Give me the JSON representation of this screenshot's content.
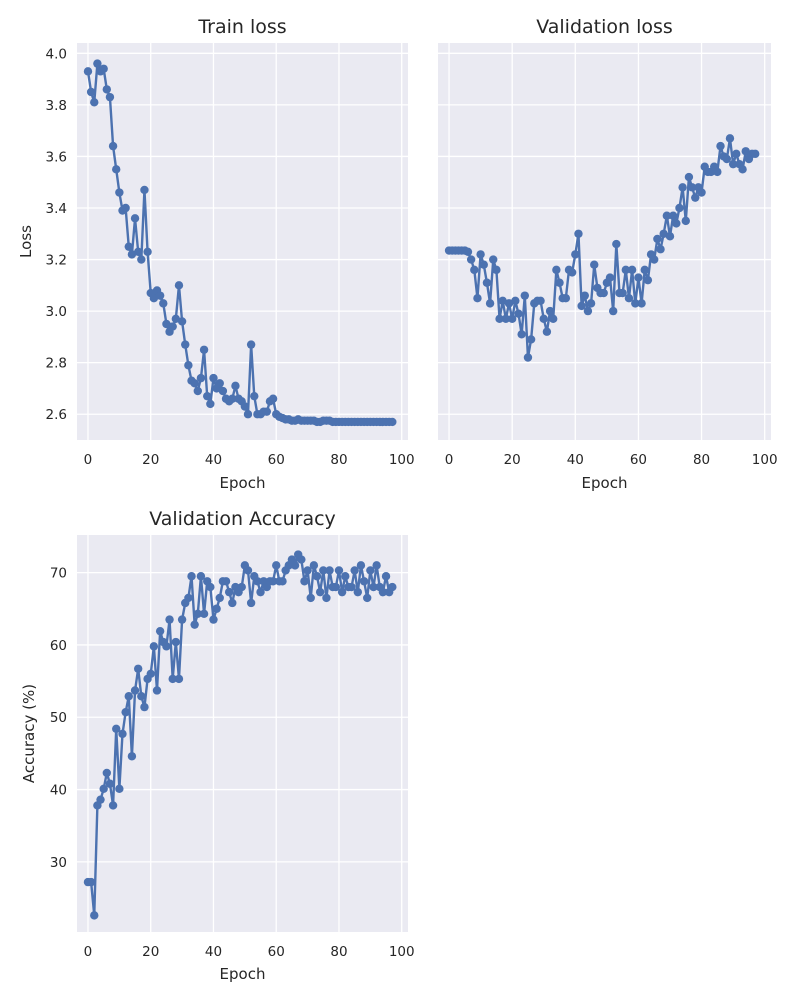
{
  "chart_data": [
    {
      "id": "train",
      "type": "line",
      "title": "Train loss",
      "xlabel": "Epoch",
      "ylabel": "Loss",
      "xlim": [
        -3.5,
        102
      ],
      "ylim": [
        2.5,
        4.04
      ],
      "xticks": [
        0,
        20,
        40,
        60,
        80,
        100
      ],
      "yticks": [
        2.6,
        2.8,
        3.0,
        3.2,
        3.4,
        3.6,
        3.8,
        4.0
      ],
      "ytick_labels": [
        "2.6",
        "2.8",
        "3.0",
        "3.2",
        "3.4",
        "3.6",
        "3.8",
        "4.0"
      ],
      "show_yticklabels": true,
      "grid": true,
      "color": "#4c72b0",
      "series": [
        {
          "x": [
            0,
            1,
            2,
            3,
            4,
            5,
            6,
            7,
            8,
            9,
            10,
            11,
            12,
            13,
            14,
            15,
            16,
            17,
            18,
            19,
            20,
            21,
            22,
            23,
            24,
            25,
            26,
            27,
            28,
            29,
            30,
            31,
            32,
            33,
            34,
            35,
            36,
            37,
            38,
            39,
            40,
            41,
            42,
            43,
            44,
            45,
            46,
            47,
            48,
            49,
            50,
            51,
            52,
            53,
            54,
            55,
            56,
            57,
            58,
            59,
            60,
            61,
            62,
            63,
            64,
            65,
            66,
            67,
            68,
            69,
            70,
            71,
            72,
            73,
            74,
            75,
            76,
            77,
            78,
            79,
            80,
            81,
            82,
            83,
            84,
            85,
            86,
            87,
            88,
            89,
            90,
            91,
            92,
            93,
            94,
            95,
            96,
            97
          ],
          "values": [
            3.93,
            3.85,
            3.81,
            3.96,
            3.93,
            3.94,
            3.86,
            3.83,
            3.64,
            3.55,
            3.46,
            3.39,
            3.4,
            3.25,
            3.22,
            3.36,
            3.23,
            3.2,
            3.47,
            3.23,
            3.07,
            3.05,
            3.08,
            3.06,
            3.03,
            2.95,
            2.92,
            2.94,
            2.97,
            3.1,
            2.96,
            2.87,
            2.79,
            2.73,
            2.72,
            2.69,
            2.74,
            2.85,
            2.67,
            2.64,
            2.74,
            2.7,
            2.72,
            2.69,
            2.66,
            2.65,
            2.66,
            2.71,
            2.66,
            2.65,
            2.63,
            2.6,
            2.87,
            2.67,
            2.6,
            2.6,
            2.61,
            2.61,
            2.65,
            2.66,
            2.6,
            2.59,
            2.585,
            2.58,
            2.58,
            2.575,
            2.575,
            2.58,
            2.575,
            2.575,
            2.575,
            2.575,
            2.575,
            2.57,
            2.57,
            2.575,
            2.575,
            2.575,
            2.57,
            2.57,
            2.57,
            2.57,
            2.57,
            2.57,
            2.57,
            2.57,
            2.57,
            2.57,
            2.57,
            2.57,
            2.57,
            2.57,
            2.57,
            2.57,
            2.57,
            2.57,
            2.57,
            2.57
          ]
        }
      ]
    },
    {
      "id": "val",
      "type": "line",
      "title": "Validation loss",
      "xlabel": "Epoch",
      "ylabel": "",
      "xlim": [
        -3.5,
        102
      ],
      "ylim": [
        2.5,
        4.04
      ],
      "xticks": [
        0,
        20,
        40,
        60,
        80,
        100
      ],
      "yticks": [
        2.6,
        2.8,
        3.0,
        3.2,
        3.4,
        3.6,
        3.8,
        4.0
      ],
      "ytick_labels": [],
      "show_yticklabels": false,
      "grid": true,
      "color": "#4c72b0",
      "series": [
        {
          "x": [
            0,
            1,
            2,
            3,
            4,
            5,
            6,
            7,
            8,
            9,
            10,
            11,
            12,
            13,
            14,
            15,
            16,
            17,
            18,
            19,
            20,
            21,
            22,
            23,
            24,
            25,
            26,
            27,
            28,
            29,
            30,
            31,
            32,
            33,
            34,
            35,
            36,
            37,
            38,
            39,
            40,
            41,
            42,
            43,
            44,
            45,
            46,
            47,
            48,
            49,
            50,
            51,
            52,
            53,
            54,
            55,
            56,
            57,
            58,
            59,
            60,
            61,
            62,
            63,
            64,
            65,
            66,
            67,
            68,
            69,
            70,
            71,
            72,
            73,
            74,
            75,
            76,
            77,
            78,
            79,
            80,
            81,
            82,
            83,
            84,
            85,
            86,
            87,
            88,
            89,
            90,
            91,
            92,
            93,
            94,
            95,
            96,
            97
          ],
          "values": [
            3.235,
            3.235,
            3.235,
            3.235,
            3.235,
            3.235,
            3.23,
            3.2,
            3.16,
            3.05,
            3.22,
            3.18,
            3.11,
            3.03,
            3.2,
            3.16,
            2.97,
            3.04,
            2.97,
            3.03,
            2.97,
            3.04,
            2.99,
            2.91,
            3.06,
            2.82,
            2.89,
            3.03,
            3.04,
            3.04,
            2.97,
            2.92,
            3.0,
            2.97,
            3.16,
            3.11,
            3.05,
            3.05,
            3.16,
            3.15,
            3.22,
            3.3,
            3.02,
            3.06,
            3.0,
            3.03,
            3.18,
            3.09,
            3.07,
            3.07,
            3.11,
            3.13,
            3.0,
            3.26,
            3.07,
            3.07,
            3.16,
            3.05,
            3.16,
            3.03,
            3.13,
            3.03,
            3.16,
            3.12,
            3.22,
            3.2,
            3.28,
            3.24,
            3.3,
            3.37,
            3.29,
            3.37,
            3.34,
            3.4,
            3.48,
            3.35,
            3.52,
            3.48,
            3.44,
            3.48,
            3.46,
            3.56,
            3.54,
            3.54,
            3.56,
            3.54,
            3.64,
            3.6,
            3.59,
            3.67,
            3.57,
            3.61,
            3.57,
            3.55,
            3.62,
            3.59,
            3.61,
            3.61
          ]
        }
      ]
    },
    {
      "id": "acc",
      "type": "line",
      "title": "Validation Accuracy",
      "xlabel": "Epoch",
      "ylabel": "Accuracy (%)",
      "xlim": [
        -3.5,
        102
      ],
      "ylim": [
        20.3,
        75.2
      ],
      "xticks": [
        0,
        20,
        40,
        60,
        80,
        100
      ],
      "yticks": [
        30,
        40,
        50,
        60,
        70
      ],
      "ytick_labels": [
        "30",
        "40",
        "50",
        "60",
        "70"
      ],
      "show_yticklabels": true,
      "grid": true,
      "color": "#4c72b0",
      "series": [
        {
          "x": [
            0,
            1,
            2,
            3,
            4,
            5,
            6,
            7,
            8,
            9,
            10,
            11,
            12,
            13,
            14,
            15,
            16,
            17,
            18,
            19,
            20,
            21,
            22,
            23,
            24,
            25,
            26,
            27,
            28,
            29,
            30,
            31,
            32,
            33,
            34,
            35,
            36,
            37,
            38,
            39,
            40,
            41,
            42,
            43,
            44,
            45,
            46,
            47,
            48,
            49,
            50,
            51,
            52,
            53,
            54,
            55,
            56,
            57,
            58,
            59,
            60,
            61,
            62,
            63,
            64,
            65,
            66,
            67,
            68,
            69,
            70,
            71,
            72,
            73,
            74,
            75,
            76,
            77,
            78,
            79,
            80,
            81,
            82,
            83,
            84,
            85,
            86,
            87,
            88,
            89,
            90,
            91,
            92,
            93,
            94,
            95,
            96,
            97
          ],
          "values": [
            27.2,
            27.2,
            22.6,
            37.8,
            38.6,
            40.1,
            42.3,
            40.8,
            37.8,
            48.4,
            40.1,
            47.7,
            50.7,
            52.9,
            44.6,
            53.7,
            56.7,
            52.9,
            51.4,
            55.3,
            56.0,
            59.8,
            53.7,
            61.9,
            60.4,
            59.8,
            63.5,
            55.3,
            60.4,
            55.3,
            63.5,
            65.8,
            66.5,
            69.5,
            62.8,
            64.3,
            69.5,
            64.3,
            68.8,
            68.0,
            63.5,
            65.0,
            66.5,
            68.8,
            68.8,
            67.3,
            65.8,
            68.0,
            67.3,
            68.0,
            71.0,
            70.3,
            65.8,
            69.5,
            68.8,
            67.3,
            68.8,
            68.0,
            68.8,
            68.8,
            71.0,
            68.8,
            68.8,
            70.3,
            71.0,
            71.8,
            71.0,
            72.5,
            71.8,
            68.8,
            70.3,
            66.5,
            71.0,
            69.5,
            67.3,
            70.3,
            66.5,
            70.3,
            68.0,
            68.0,
            70.3,
            67.3,
            69.5,
            68.0,
            68.0,
            70.3,
            67.3,
            71.0,
            68.8,
            66.5,
            70.3,
            68.0,
            71.0,
            68.0,
            67.3,
            69.5,
            67.3,
            68.0
          ]
        }
      ]
    }
  ]
}
